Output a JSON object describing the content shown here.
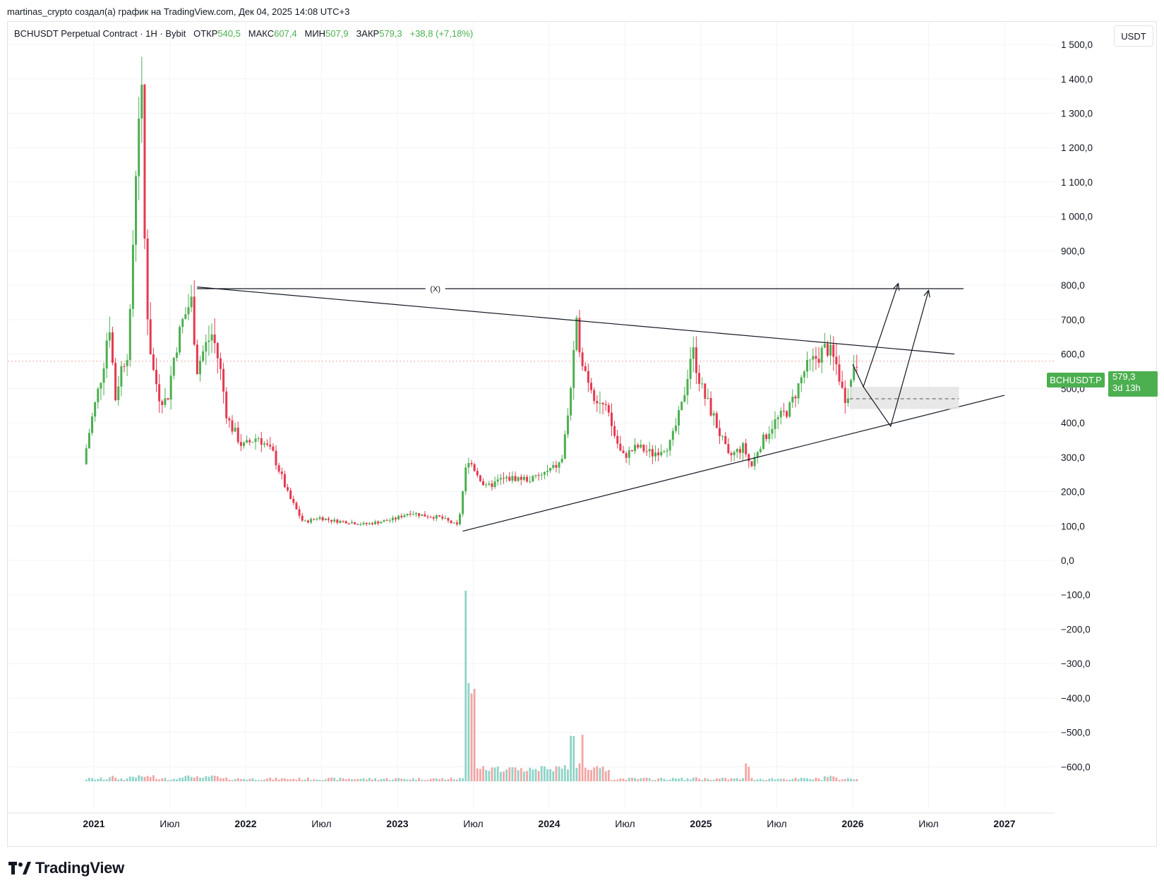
{
  "caption": "martinas_crypto создал(а) график на TradingView.com, Дек 04, 2025 14:08 UTC+3",
  "legend": {
    "symbol": "BCHUSDT Perpetual Contract · 1Н · Bybit",
    "open_label": "ОТКР",
    "open_value": "540,5",
    "high_label": "МАКС",
    "high_value": "607,4",
    "low_label": "МИН",
    "low_value": "507,9",
    "close_label": "ЗАКР",
    "close_value": "579,3",
    "change": "+38,8 (+7,18%)"
  },
  "currency_button": "USDT",
  "price_tag": {
    "symbol": "BCHUSDT.P",
    "price": "579,3",
    "countdown": "3d 13h"
  },
  "brand": "TradingView",
  "colors": {
    "up": "#4caf50",
    "down": "#e53950",
    "vol_up": "#8fd3c7",
    "vol_down": "#f2a5a5",
    "grid": "#f0f3fa",
    "line": "#131722"
  },
  "chart_data": {
    "type": "candlestick",
    "symbol": "BCHUSDT.P",
    "ylim": [
      -650,
      1520
    ],
    "y_ticks": [
      "1 500,0",
      "1 400,0",
      "1 300,0",
      "1 200,0",
      "1 100,0",
      "1 000,0",
      "900,0",
      "800,0",
      "700,0",
      "600,0",
      "500,0",
      "400,0",
      "300,0",
      "200,0",
      "100,0",
      "0,0",
      "−100,0",
      "−200,0",
      "−300,0",
      "−400,0",
      "−500,0",
      "−600,0"
    ],
    "x_ticks": [
      {
        "label": "2021",
        "t": 0,
        "year": true
      },
      {
        "label": "Июл",
        "t": 0.5,
        "year": false
      },
      {
        "label": "2022",
        "t": 1,
        "year": true
      },
      {
        "label": "Июл",
        "t": 1.5,
        "year": false
      },
      {
        "label": "2023",
        "t": 2,
        "year": true
      },
      {
        "label": "Июл",
        "t": 2.5,
        "year": false
      },
      {
        "label": "2024",
        "t": 3,
        "year": true
      },
      {
        "label": "Июл",
        "t": 3.5,
        "year": false
      },
      {
        "label": "2025",
        "t": 4,
        "year": true
      },
      {
        "label": "Июл",
        "t": 4.5,
        "year": false
      },
      {
        "label": "2026",
        "t": 5,
        "year": true
      },
      {
        "label": "Июл",
        "t": 5.5,
        "year": false
      },
      {
        "label": "2027",
        "t": 6,
        "year": true
      }
    ],
    "current_price": 579.3,
    "price_path": [
      [
        -0.05,
        280
      ],
      [
        0,
        400
      ],
      [
        0.04,
        480
      ],
      [
        0.08,
        560
      ],
      [
        0.12,
        700
      ],
      [
        0.16,
        470
      ],
      [
        0.2,
        560
      ],
      [
        0.25,
        620
      ],
      [
        0.3,
        1180
      ],
      [
        0.33,
        1430
      ],
      [
        0.36,
        800
      ],
      [
        0.4,
        570
      ],
      [
        0.45,
        480
      ],
      [
        0.5,
        460
      ],
      [
        0.55,
        600
      ],
      [
        0.6,
        690
      ],
      [
        0.66,
        760
      ],
      [
        0.7,
        560
      ],
      [
        0.75,
        620
      ],
      [
        0.8,
        660
      ],
      [
        0.85,
        560
      ],
      [
        0.9,
        410
      ],
      [
        1.0,
        330
      ],
      [
        1.1,
        360
      ],
      [
        1.2,
        310
      ],
      [
        1.3,
        190
      ],
      [
        1.4,
        110
      ],
      [
        1.5,
        125
      ],
      [
        1.6,
        115
      ],
      [
        1.7,
        112
      ],
      [
        1.8,
        105
      ],
      [
        1.9,
        112
      ],
      [
        2.0,
        120
      ],
      [
        2.1,
        140
      ],
      [
        2.2,
        130
      ],
      [
        2.3,
        125
      ],
      [
        2.42,
        100
      ],
      [
        2.48,
        300
      ],
      [
        2.55,
        250
      ],
      [
        2.6,
        210
      ],
      [
        2.7,
        235
      ],
      [
        2.8,
        240
      ],
      [
        2.9,
        235
      ],
      [
        3.0,
        255
      ],
      [
        3.1,
        285
      ],
      [
        3.15,
        450
      ],
      [
        3.2,
        680
      ],
      [
        3.25,
        560
      ],
      [
        3.32,
        480
      ],
      [
        3.4,
        430
      ],
      [
        3.5,
        300
      ],
      [
        3.6,
        330
      ],
      [
        3.7,
        310
      ],
      [
        3.82,
        340
      ],
      [
        3.9,
        460
      ],
      [
        3.96,
        620
      ],
      [
        4.03,
        490
      ],
      [
        4.1,
        420
      ],
      [
        4.2,
        300
      ],
      [
        4.3,
        330
      ],
      [
        4.35,
        270
      ],
      [
        4.4,
        330
      ],
      [
        4.5,
        400
      ],
      [
        4.6,
        440
      ],
      [
        4.7,
        550
      ],
      [
        4.78,
        590
      ],
      [
        4.85,
        620
      ],
      [
        4.92,
        560
      ],
      [
        4.96,
        470
      ],
      [
        5.0,
        500
      ],
      [
        5.03,
        579
      ]
    ],
    "volume_spikes": [
      [
        2.45,
        1000
      ],
      [
        2.48,
        620
      ],
      [
        2.5,
        500
      ],
      [
        3.15,
        210
      ],
      [
        3.22,
        190
      ],
      [
        4.3,
        100
      ]
    ],
    "annotations": {
      "wave_label": "(X)",
      "resistance_line": [
        [
          0.68,
          795
        ],
        [
          5.67,
          600
        ]
      ],
      "horizontal_line": [
        [
          0.68,
          790
        ],
        [
          5.73,
          790
        ]
      ],
      "support_line": [
        [
          2.43,
          85
        ],
        [
          6.0,
          480
        ]
      ],
      "zone": {
        "t0": 4.98,
        "t1": 5.7,
        "y0": 440,
        "y1": 505,
        "mid": 470
      },
      "scenario_a": [
        [
          5.0,
          570
        ],
        [
          5.07,
          505
        ],
        [
          5.3,
          805
        ]
      ],
      "scenario_b": [
        [
          5.07,
          505
        ],
        [
          5.25,
          390
        ],
        [
          5.5,
          785
        ]
      ]
    }
  }
}
